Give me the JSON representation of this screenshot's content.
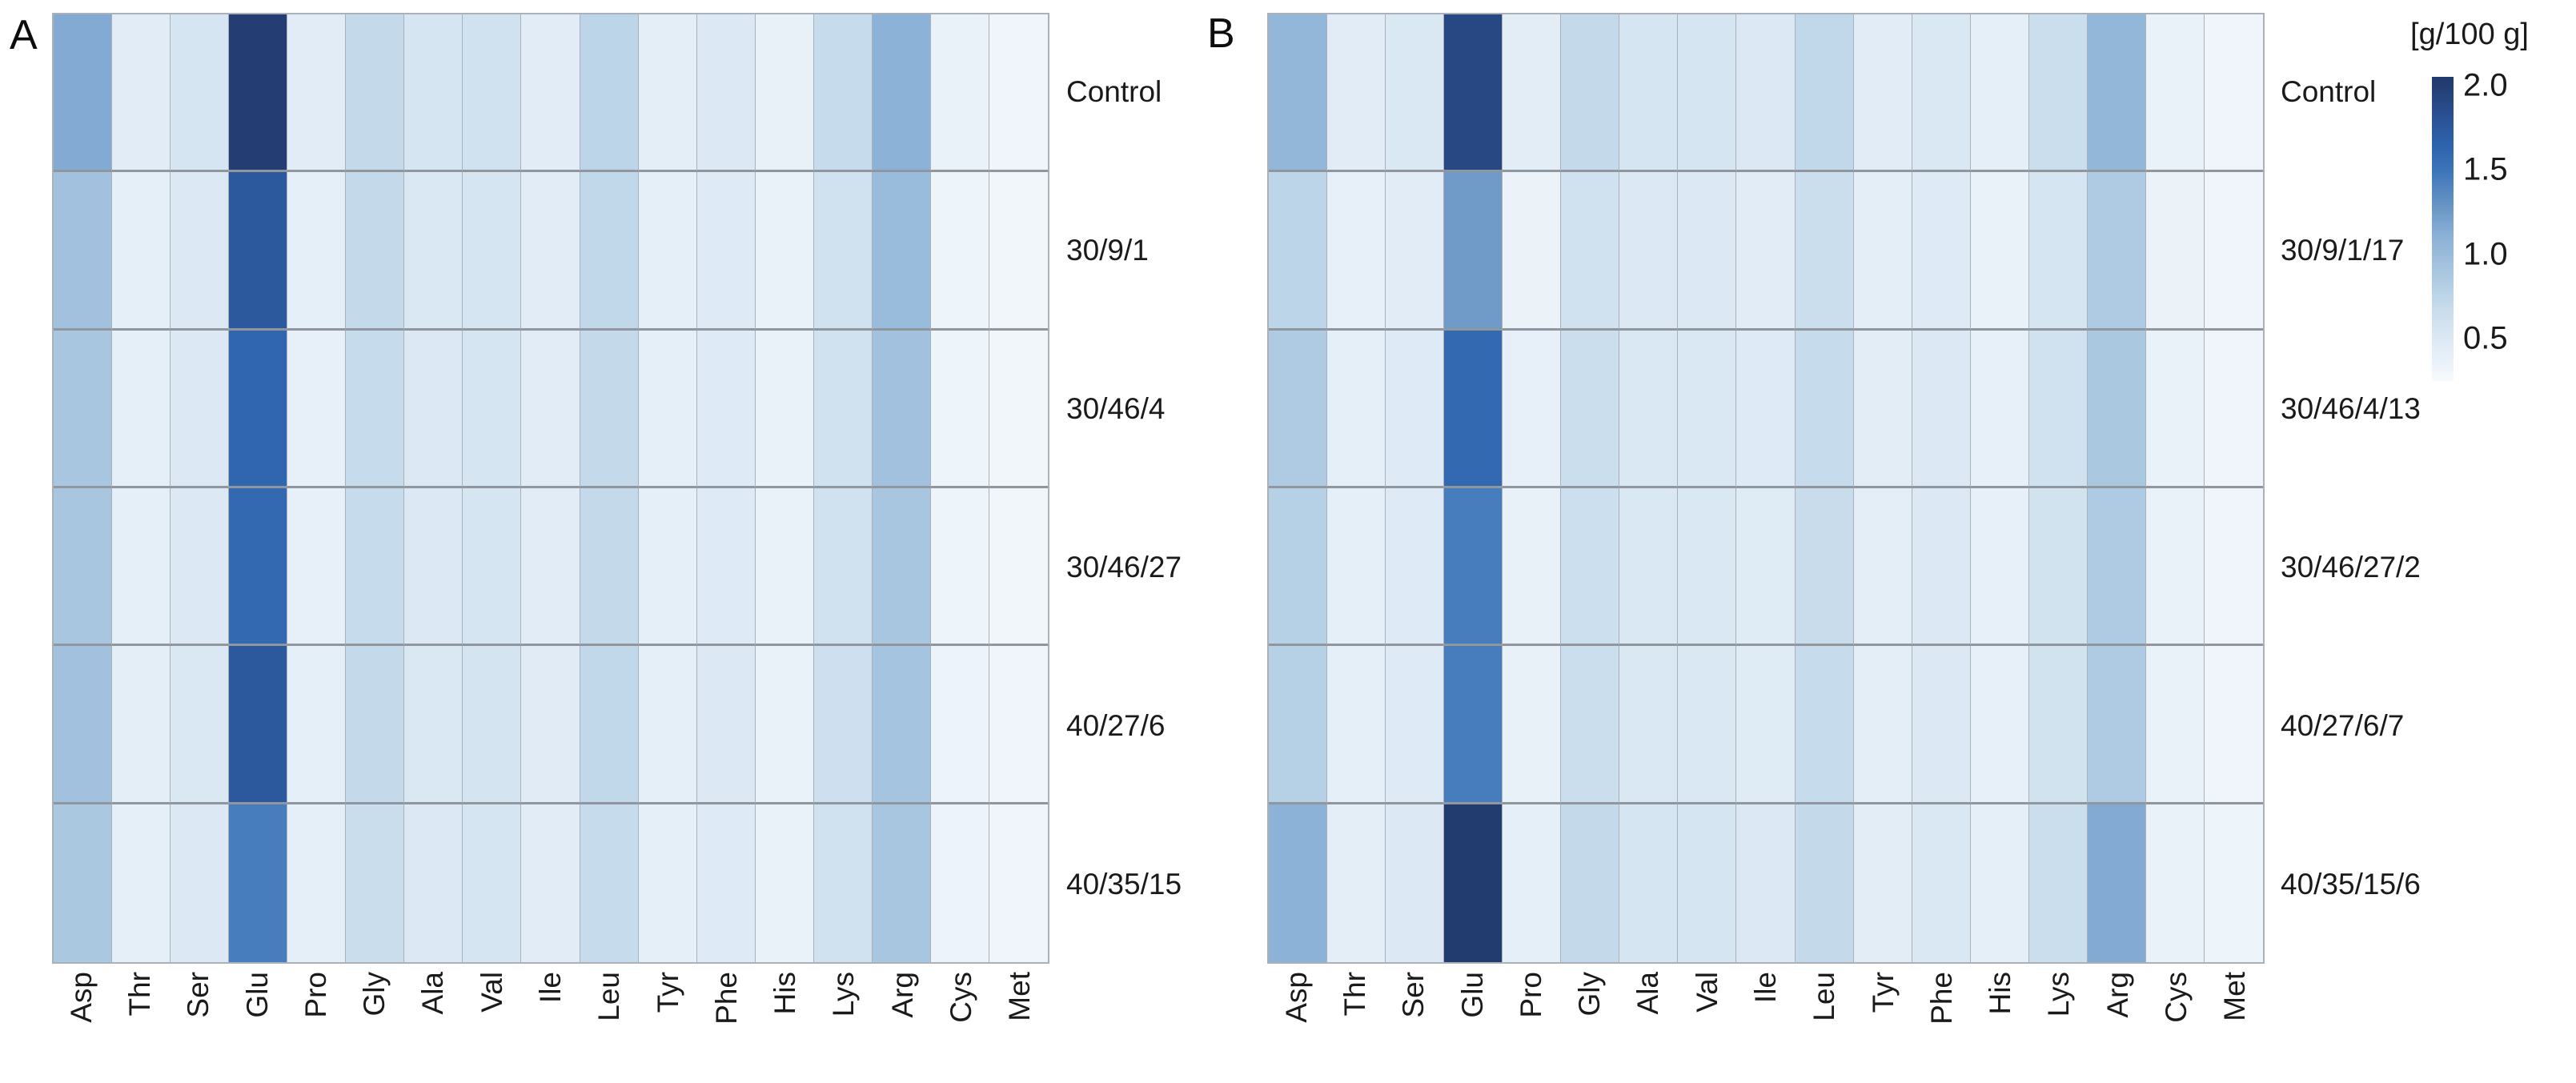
{
  "chart_data": {
    "type": "heatmap",
    "unit": "g/100 g",
    "columns": [
      "Asp",
      "Thr",
      "Ser",
      "Glu",
      "Pro",
      "Gly",
      "Ala",
      "Val",
      "Ile",
      "Leu",
      "Tyr",
      "Phe",
      "His",
      "Lys",
      "Arg",
      "Cys",
      "Met"
    ],
    "panels": [
      {
        "label": "A",
        "rows": [
          "Control",
          "30/9/1",
          "30/46/4",
          "30/46/27",
          "40/27/6",
          "40/35/15"
        ],
        "values": [
          [
            1.15,
            0.45,
            0.55,
            2.0,
            0.45,
            0.7,
            0.55,
            0.6,
            0.45,
            0.75,
            0.42,
            0.5,
            0.37,
            0.68,
            1.1,
            0.35,
            0.3
          ],
          [
            0.95,
            0.4,
            0.5,
            1.75,
            0.4,
            0.7,
            0.52,
            0.55,
            0.45,
            0.72,
            0.4,
            0.48,
            0.35,
            0.6,
            1.0,
            0.32,
            0.28
          ],
          [
            0.9,
            0.4,
            0.5,
            1.62,
            0.38,
            0.68,
            0.5,
            0.55,
            0.45,
            0.7,
            0.4,
            0.48,
            0.35,
            0.6,
            0.95,
            0.32,
            0.28
          ],
          [
            0.9,
            0.4,
            0.5,
            1.6,
            0.38,
            0.68,
            0.5,
            0.55,
            0.45,
            0.7,
            0.4,
            0.48,
            0.35,
            0.6,
            0.9,
            0.32,
            0.28
          ],
          [
            0.95,
            0.42,
            0.52,
            1.75,
            0.4,
            0.7,
            0.52,
            0.57,
            0.46,
            0.72,
            0.4,
            0.5,
            0.36,
            0.62,
            0.92,
            0.33,
            0.3
          ],
          [
            0.88,
            0.4,
            0.5,
            1.45,
            0.4,
            0.66,
            0.5,
            0.55,
            0.45,
            0.68,
            0.4,
            0.48,
            0.36,
            0.6,
            0.9,
            0.33,
            0.3
          ]
        ]
      },
      {
        "label": "B",
        "rows": [
          "Control",
          "30/9/1/17",
          "30/46/4/13",
          "30/46/27/2",
          "40/27/6/7",
          "40/35/15/6"
        ],
        "values": [
          [
            1.05,
            0.45,
            0.52,
            1.9,
            0.43,
            0.7,
            0.55,
            0.55,
            0.5,
            0.72,
            0.45,
            0.52,
            0.4,
            0.65,
            1.05,
            0.36,
            0.3
          ],
          [
            0.75,
            0.38,
            0.45,
            1.25,
            0.34,
            0.6,
            0.5,
            0.5,
            0.45,
            0.65,
            0.42,
            0.48,
            0.36,
            0.55,
            0.85,
            0.34,
            0.3
          ],
          [
            0.85,
            0.4,
            0.48,
            1.6,
            0.38,
            0.65,
            0.52,
            0.52,
            0.48,
            0.68,
            0.43,
            0.5,
            0.38,
            0.6,
            0.88,
            0.35,
            0.3
          ],
          [
            0.8,
            0.4,
            0.48,
            1.45,
            0.37,
            0.64,
            0.52,
            0.52,
            0.47,
            0.67,
            0.42,
            0.5,
            0.38,
            0.58,
            0.85,
            0.35,
            0.3
          ],
          [
            0.8,
            0.4,
            0.48,
            1.45,
            0.37,
            0.65,
            0.52,
            0.52,
            0.47,
            0.68,
            0.42,
            0.5,
            0.38,
            0.58,
            0.85,
            0.35,
            0.3
          ],
          [
            1.1,
            0.42,
            0.5,
            2.05,
            0.4,
            0.7,
            0.55,
            0.55,
            0.5,
            0.7,
            0.44,
            0.52,
            0.4,
            0.65,
            1.15,
            0.36,
            0.32
          ]
        ]
      }
    ],
    "colorbar": {
      "title": "[g/100 g]",
      "ticks": [
        "2.0",
        "1.5",
        "1.0",
        "0.5"
      ],
      "tick_values": [
        2.0,
        1.5,
        1.0,
        0.5
      ],
      "vmin": 0.25,
      "vmax": 2.05
    },
    "colorscale": [
      [
        0.2,
        "#f8fbfd"
      ],
      [
        0.35,
        "#eaf2f9"
      ],
      [
        0.5,
        "#dce9f4"
      ],
      [
        0.7,
        "#c4daeb"
      ],
      [
        0.9,
        "#a8c6e0"
      ],
      [
        1.1,
        "#8cb2d7"
      ],
      [
        1.3,
        "#6693c4"
      ],
      [
        1.5,
        "#3c74ba"
      ],
      [
        1.65,
        "#2d63ac"
      ],
      [
        1.8,
        "#2b5296"
      ],
      [
        2.0,
        "#243d72"
      ],
      [
        2.1,
        "#1f3a6e"
      ]
    ],
    "grid_line_color": "#8f969d",
    "layout": {
      "legend_position": "top-right",
      "grid": true
    }
  }
}
